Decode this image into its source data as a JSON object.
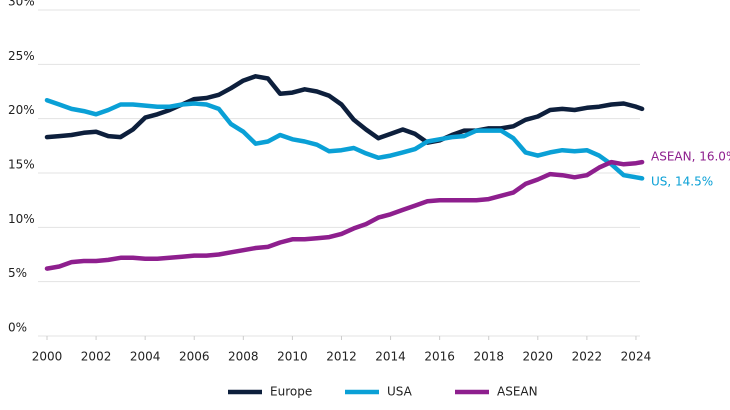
{
  "chart_data": {
    "type": "line",
    "x": [
      2000,
      2000.5,
      2001,
      2001.5,
      2002,
      2002.5,
      2003,
      2003.5,
      2004,
      2004.5,
      2005,
      2005.5,
      2006,
      2006.5,
      2007,
      2007.5,
      2008,
      2008.5,
      2009,
      2009.5,
      2010,
      2010.5,
      2011,
      2011.5,
      2012,
      2012.5,
      2013,
      2013.5,
      2014,
      2014.5,
      2015,
      2015.5,
      2016,
      2016.5,
      2017,
      2017.5,
      2018,
      2018.5,
      2019,
      2019.5,
      2020,
      2020.5,
      2021,
      2021.5,
      2022,
      2022.5,
      2023,
      2023.5,
      2024,
      2024.25
    ],
    "series": [
      {
        "name": "Europe",
        "color": "#0d1f3c",
        "values": [
          18.3,
          18.4,
          18.5,
          18.7,
          18.8,
          18.4,
          18.3,
          19.0,
          20.1,
          20.4,
          20.8,
          21.3,
          21.8,
          21.9,
          22.2,
          22.8,
          23.5,
          23.9,
          23.7,
          22.3,
          22.4,
          22.7,
          22.5,
          22.1,
          21.3,
          19.9,
          19.0,
          18.2,
          18.6,
          19.0,
          18.6,
          17.8,
          18.0,
          18.5,
          18.9,
          18.9,
          19.1,
          19.1,
          19.3,
          19.9,
          20.2,
          20.8,
          20.9,
          20.8,
          21.0,
          21.1,
          21.3,
          21.4,
          21.1,
          20.9
        ]
      },
      {
        "name": "USA",
        "color": "#0aa0d6",
        "values": [
          21.7,
          21.3,
          20.9,
          20.7,
          20.4,
          20.8,
          21.3,
          21.3,
          21.2,
          21.1,
          21.1,
          21.3,
          21.4,
          21.3,
          20.9,
          19.5,
          18.8,
          17.7,
          17.9,
          18.5,
          18.1,
          17.9,
          17.6,
          17.0,
          17.1,
          17.3,
          16.8,
          16.4,
          16.6,
          16.9,
          17.2,
          17.9,
          18.1,
          18.3,
          18.4,
          18.9,
          18.9,
          18.9,
          18.2,
          16.9,
          16.6,
          16.9,
          17.1,
          17.0,
          17.1,
          16.6,
          15.8,
          14.8,
          14.6,
          14.5
        ]
      },
      {
        "name": "ASEAN",
        "color": "#8e1f8e",
        "values": [
          6.2,
          6.4,
          6.8,
          6.9,
          6.9,
          7.0,
          7.2,
          7.2,
          7.1,
          7.1,
          7.2,
          7.3,
          7.4,
          7.4,
          7.5,
          7.7,
          7.9,
          8.1,
          8.2,
          8.6,
          8.9,
          8.9,
          9.0,
          9.1,
          9.4,
          9.9,
          10.3,
          10.9,
          11.2,
          11.6,
          12.0,
          12.4,
          12.5,
          12.5,
          12.5,
          12.5,
          12.6,
          12.9,
          13.2,
          14.0,
          14.4,
          14.9,
          14.8,
          14.6,
          14.8,
          15.5,
          16.0,
          15.8,
          15.9,
          16.0
        ]
      }
    ],
    "annotations": [
      "ASEAN, 16.0%",
      "US, 14.5%"
    ],
    "xlim": [
      2000,
      2024.25
    ],
    "xticks": [
      2000,
      2002,
      2004,
      2006,
      2008,
      2010,
      2012,
      2014,
      2016,
      2018,
      2020,
      2022,
      2024
    ],
    "ylim": [
      0,
      30
    ],
    "yticks": [
      {
        "value": 0,
        "label": "0%"
      },
      {
        "value": 5,
        "label": "5%"
      },
      {
        "value": 10,
        "label": "10%"
      },
      {
        "value": 15,
        "label": "15%"
      },
      {
        "value": 20,
        "label": "20%"
      },
      {
        "value": 25,
        "label": "25%"
      },
      {
        "value": 30,
        "label": "30%"
      }
    ],
    "grid": true
  }
}
